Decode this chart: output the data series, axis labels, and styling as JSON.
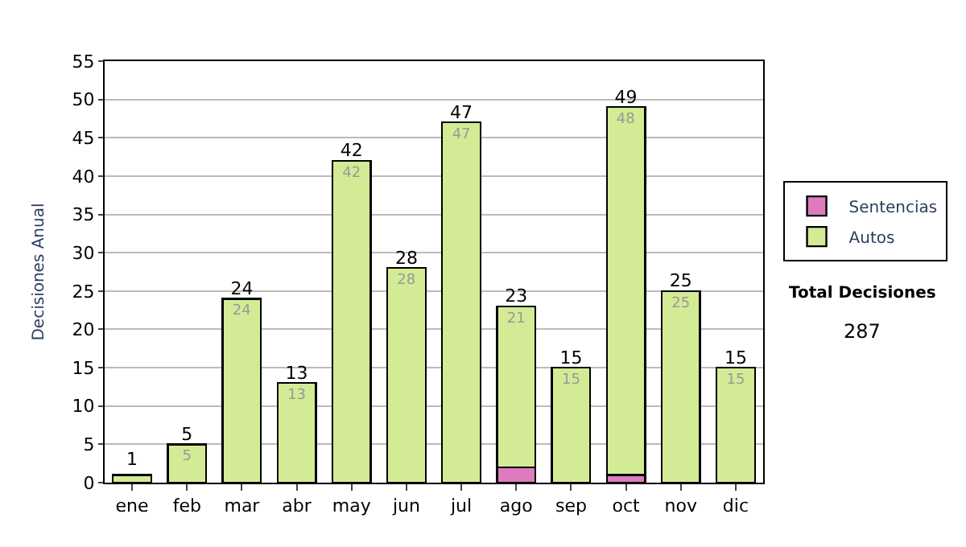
{
  "chart_data": {
    "type": "bar",
    "stacked": true,
    "ylabel": "Decisiones Anual",
    "categories": [
      "ene",
      "feb",
      "mar",
      "abr",
      "may",
      "jun",
      "jul",
      "ago",
      "sep",
      "oct",
      "nov",
      "dic"
    ],
    "series": [
      {
        "name": "Sentencias",
        "color": "#dd7bbf",
        "values": [
          0,
          0,
          0,
          0,
          0,
          0,
          0,
          2,
          0,
          1,
          0,
          0
        ]
      },
      {
        "name": "Autos",
        "color": "#d4eb95",
        "values": [
          1,
          5,
          24,
          13,
          42,
          28,
          47,
          21,
          15,
          48,
          25,
          15
        ],
        "value_labels": [
          "1",
          "5",
          "24",
          "13",
          "42",
          "28",
          "47",
          "21",
          "15",
          "48",
          "25",
          "15"
        ]
      }
    ],
    "totals": [
      null,
      "5",
      "24",
      "13",
      "42",
      "28",
      "47",
      "23",
      "15",
      "49",
      "25",
      "15"
    ],
    "ylim": [
      0,
      55
    ],
    "yticks": [
      0,
      5,
      10,
      15,
      20,
      25,
      30,
      35,
      40,
      45,
      50,
      55
    ],
    "grid": "y",
    "legend": "right",
    "annotations": [
      "Total Decisiones",
      "287"
    ]
  }
}
